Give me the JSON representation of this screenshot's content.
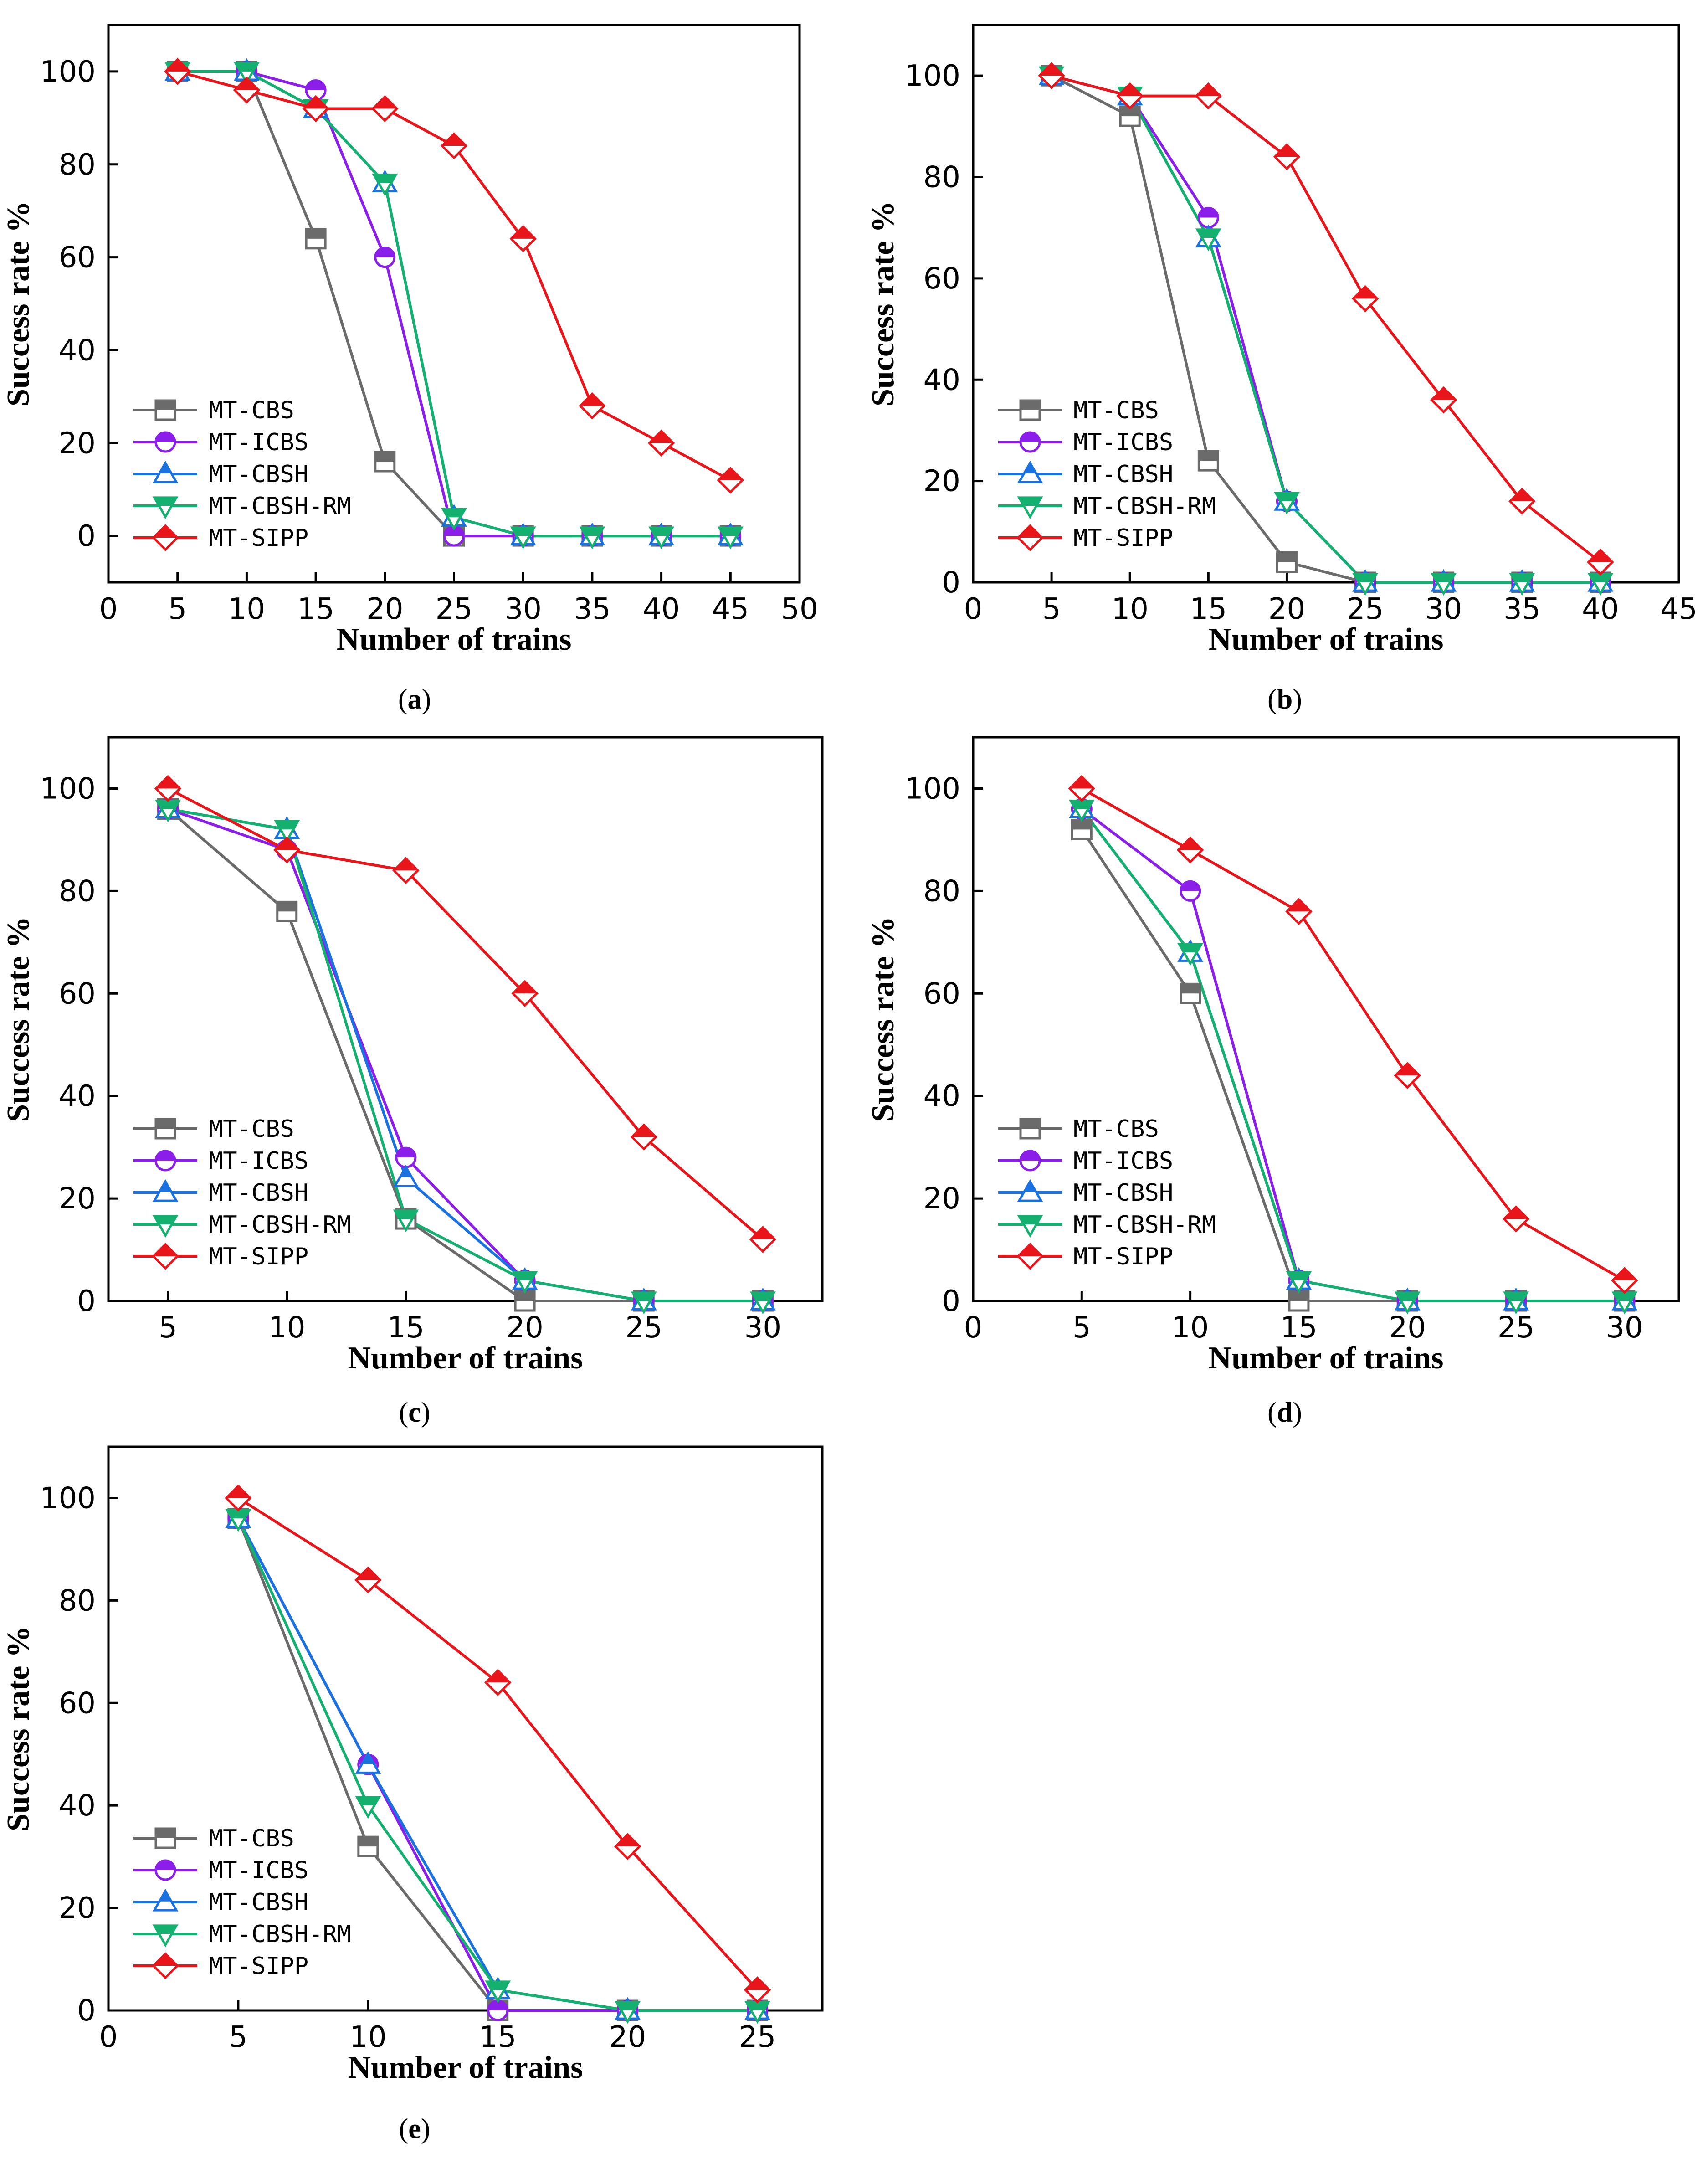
{
  "figure": {
    "axis_labels": {
      "x": "Number of trains",
      "y": "Success rate %"
    }
  },
  "series_styles": [
    {
      "name": "MT-CBS",
      "color": "#6b6b6b",
      "marker": "square"
    },
    {
      "name": "MT-ICBS",
      "color": "#8b1ee8",
      "marker": "circle"
    },
    {
      "name": "MT-CBSH",
      "color": "#1a72e0",
      "marker": "triangle-up"
    },
    {
      "name": "MT-CBSH-RM",
      "color": "#14b070",
      "marker": "triangle-down"
    },
    {
      "name": "MT-SIPP",
      "color": "#e8161b",
      "marker": "diamond"
    }
  ],
  "chart_data": [
    {
      "type": "line",
      "caption": {
        "letter": "a"
      },
      "xlabel": "Number of trains",
      "ylabel": "Success rate %",
      "xlim": [
        0,
        50
      ],
      "ylim": [
        -10,
        110
      ],
      "xticks": [
        0,
        5,
        10,
        15,
        20,
        25,
        30,
        35,
        40,
        45,
        50
      ],
      "yticks": [
        0,
        20,
        40,
        60,
        80,
        100
      ],
      "legend": "lower-left",
      "x": [
        5,
        10,
        15,
        20,
        25,
        30,
        35,
        40,
        45
      ],
      "series": [
        {
          "name": "MT-CBS",
          "values": [
            100,
            100,
            64,
            16,
            0,
            0,
            0,
            0,
            0
          ]
        },
        {
          "name": "MT-ICBS",
          "values": [
            100,
            100,
            96,
            60,
            0,
            0,
            0,
            0,
            0
          ]
        },
        {
          "name": "MT-CBSH",
          "values": [
            100,
            100,
            92,
            76,
            4,
            0,
            0,
            0,
            0
          ]
        },
        {
          "name": "MT-CBSH-RM",
          "values": [
            100,
            100,
            92,
            76,
            4,
            0,
            0,
            0,
            0
          ]
        },
        {
          "name": "MT-SIPP",
          "values": [
            100,
            96,
            92,
            92,
            84,
            64,
            28,
            20,
            12
          ]
        }
      ]
    },
    {
      "type": "line",
      "caption": {
        "letter": "b"
      },
      "xlabel": "Number of trains",
      "ylabel": "Success rate %",
      "xlim": [
        0,
        45
      ],
      "ylim": [
        0,
        110
      ],
      "xticks": [
        0,
        5,
        10,
        15,
        20,
        25,
        30,
        35,
        40,
        45
      ],
      "yticks": [
        0,
        20,
        40,
        60,
        80,
        100
      ],
      "legend": "lower-left",
      "x": [
        5,
        10,
        15,
        20,
        25,
        30,
        35,
        40
      ],
      "series": [
        {
          "name": "MT-CBS",
          "values": [
            100,
            92,
            24,
            4,
            0,
            0,
            0,
            0
          ]
        },
        {
          "name": "MT-ICBS",
          "values": [
            100,
            96,
            72,
            16,
            0,
            0,
            0,
            0
          ]
        },
        {
          "name": "MT-CBSH",
          "values": [
            100,
            96,
            68,
            16,
            0,
            0,
            0,
            0
          ]
        },
        {
          "name": "MT-CBSH-RM",
          "values": [
            100,
            96,
            68,
            16,
            0,
            0,
            0,
            0
          ]
        },
        {
          "name": "MT-SIPP",
          "values": [
            100,
            96,
            96,
            84,
            56,
            36,
            16,
            4
          ]
        }
      ]
    },
    {
      "type": "line",
      "caption": {
        "letter": "c"
      },
      "xlabel": "Number of trains",
      "ylabel": "Success rate %",
      "xlim": [
        2.5,
        32.5
      ],
      "ylim": [
        0,
        110
      ],
      "xticks": [
        5,
        10,
        15,
        20,
        25,
        30
      ],
      "yticks": [
        0,
        20,
        40,
        60,
        80,
        100
      ],
      "legend": "lower-left",
      "x": [
        5,
        10,
        15,
        20,
        25,
        30
      ],
      "series": [
        {
          "name": "MT-CBS",
          "values": [
            96,
            76,
            16,
            0,
            0,
            0
          ]
        },
        {
          "name": "MT-ICBS",
          "values": [
            96,
            88,
            28,
            4,
            0,
            0
          ]
        },
        {
          "name": "MT-CBSH",
          "values": [
            96,
            92,
            24,
            4,
            0,
            0
          ]
        },
        {
          "name": "MT-CBSH-RM",
          "values": [
            96,
            92,
            16,
            4,
            0,
            0
          ]
        },
        {
          "name": "MT-SIPP",
          "values": [
            100,
            88,
            84,
            60,
            32,
            12
          ]
        }
      ]
    },
    {
      "type": "line",
      "caption": {
        "letter": "d"
      },
      "xlabel": "Number of trains",
      "ylabel": "Success rate %",
      "xlim": [
        0,
        32.5
      ],
      "ylim": [
        0,
        110
      ],
      "xticks": [
        0,
        5,
        10,
        15,
        20,
        25,
        30
      ],
      "yticks": [
        0,
        20,
        40,
        60,
        80,
        100
      ],
      "legend": "lower-left",
      "x": [
        5,
        10,
        15,
        20,
        25,
        30
      ],
      "series": [
        {
          "name": "MT-CBS",
          "values": [
            92,
            60,
            0,
            0,
            0,
            0
          ]
        },
        {
          "name": "MT-ICBS",
          "values": [
            96,
            80,
            4,
            0,
            0,
            0
          ]
        },
        {
          "name": "MT-CBSH",
          "values": [
            96,
            68,
            4,
            0,
            0,
            0
          ]
        },
        {
          "name": "MT-CBSH-RM",
          "values": [
            96,
            68,
            4,
            0,
            0,
            0
          ]
        },
        {
          "name": "MT-SIPP",
          "values": [
            100,
            88,
            76,
            44,
            16,
            4
          ]
        }
      ]
    },
    {
      "type": "line",
      "caption": {
        "letter": "e"
      },
      "xlabel": "Number of trains",
      "ylabel": "Success rate %",
      "xlim": [
        0,
        27.5
      ],
      "ylim": [
        0,
        110
      ],
      "xticks": [
        0,
        5,
        10,
        15,
        20,
        25
      ],
      "yticks": [
        0,
        20,
        40,
        60,
        80,
        100
      ],
      "legend": "lower-left",
      "x": [
        5,
        10,
        15,
        20,
        25
      ],
      "series": [
        {
          "name": "MT-CBS",
          "values": [
            96,
            32,
            0,
            0,
            0
          ]
        },
        {
          "name": "MT-ICBS",
          "values": [
            96,
            48,
            0,
            0,
            0
          ]
        },
        {
          "name": "MT-CBSH",
          "values": [
            96,
            48,
            4,
            0,
            0
          ]
        },
        {
          "name": "MT-CBSH-RM",
          "values": [
            96,
            40,
            4,
            0,
            0
          ]
        },
        {
          "name": "MT-SIPP",
          "values": [
            100,
            84,
            64,
            32,
            4
          ]
        }
      ]
    }
  ]
}
